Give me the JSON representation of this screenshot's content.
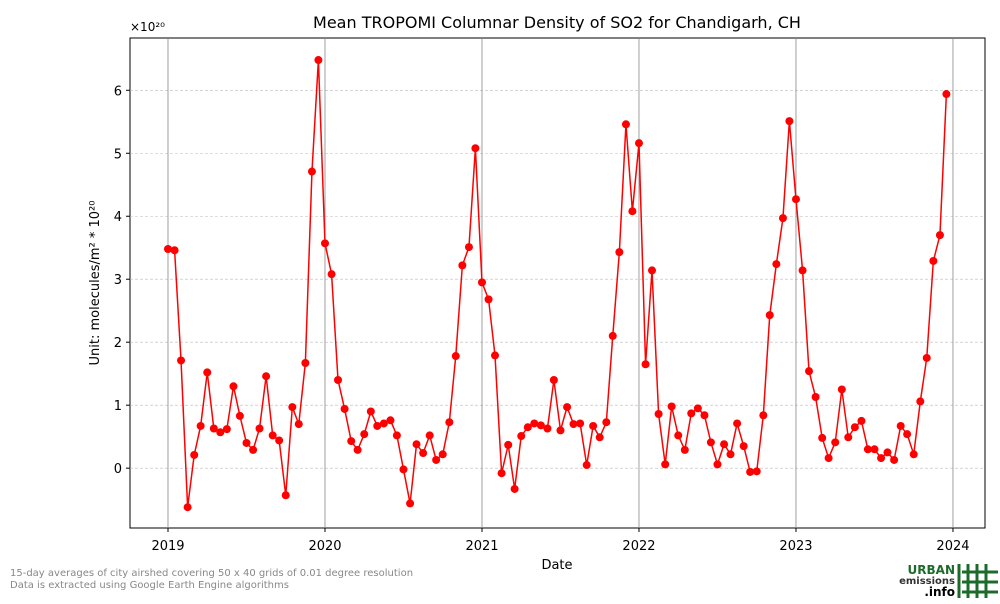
{
  "chart_data": {
    "type": "line",
    "title": "Mean TROPOMI Columnar Density of SO2 for Chandigarh, CH",
    "y_offset_label": "×10²⁰",
    "xlabel": "Date",
    "ylabel": "Unit: molecules/m² * 10²⁰",
    "footnotes": [
      "15-day averages of city airshed covering 50 x 40 grids of 0.01 degree resolution",
      "Data is extracted using Google Earth Engine algorithms"
    ],
    "logo": [
      "URBAN",
      "emissions",
      ".info"
    ],
    "grid": true,
    "xlim": [
      2018.758,
      2024.204
    ],
    "xticks": [
      2019,
      2020,
      2021,
      2022,
      2023,
      2024
    ],
    "ylim": [
      -0.95,
      6.83
    ],
    "yticks": [
      0,
      1,
      2,
      3,
      4,
      5,
      6
    ],
    "x": [
      2019.0,
      2019.042,
      2019.083,
      2019.125,
      2019.167,
      2019.208,
      2019.25,
      2019.292,
      2019.333,
      2019.375,
      2019.417,
      2019.458,
      2019.5,
      2019.542,
      2019.583,
      2019.625,
      2019.667,
      2019.708,
      2019.75,
      2019.792,
      2019.833,
      2019.875,
      2019.917,
      2019.958,
      2020.0,
      2020.042,
      2020.083,
      2020.125,
      2020.167,
      2020.208,
      2020.25,
      2020.292,
      2020.333,
      2020.375,
      2020.417,
      2020.458,
      2020.5,
      2020.542,
      2020.583,
      2020.625,
      2020.667,
      2020.708,
      2020.75,
      2020.792,
      2020.833,
      2020.875,
      2020.917,
      2020.958,
      2021.0,
      2021.042,
      2021.083,
      2021.125,
      2021.167,
      2021.208,
      2021.25,
      2021.292,
      2021.333,
      2021.375,
      2021.417,
      2021.458,
      2021.5,
      2021.542,
      2021.583,
      2021.625,
      2021.667,
      2021.708,
      2021.75,
      2021.792,
      2021.833,
      2021.875,
      2021.917,
      2021.958,
      2022.0,
      2022.042,
      2022.083,
      2022.125,
      2022.167,
      2022.208,
      2022.25,
      2022.292,
      2022.333,
      2022.375,
      2022.417,
      2022.458,
      2022.5,
      2022.542,
      2022.583,
      2022.625,
      2022.667,
      2022.708,
      2022.75,
      2022.792,
      2022.833,
      2022.875,
      2022.917,
      2022.958,
      2023.0,
      2023.042,
      2023.083,
      2023.125,
      2023.167,
      2023.208,
      2023.25,
      2023.292,
      2023.333,
      2023.375,
      2023.417,
      2023.458,
      2023.5,
      2023.542,
      2023.583,
      2023.625,
      2023.667,
      2023.708,
      2023.75,
      2023.792,
      2023.833,
      2023.875,
      2023.917,
      2023.958
    ],
    "series": [
      {
        "color": "#ff0000",
        "values": [
          3.48,
          3.46,
          1.71,
          -0.62,
          0.21,
          0.67,
          1.52,
          0.63,
          0.57,
          0.62,
          1.3,
          0.83,
          0.4,
          0.29,
          0.63,
          1.46,
          0.52,
          0.44,
          -0.43,
          0.97,
          0.7,
          1.67,
          4.71,
          6.48,
          3.57,
          3.08,
          1.4,
          0.94,
          0.43,
          0.29,
          0.54,
          0.9,
          0.67,
          0.71,
          0.76,
          0.52,
          -0.02,
          -0.56,
          0.38,
          0.24,
          0.52,
          0.13,
          0.22,
          0.73,
          1.78,
          3.22,
          3.51,
          5.08,
          2.95,
          2.68,
          1.79,
          -0.08,
          0.37,
          -0.33,
          0.51,
          0.65,
          0.71,
          0.68,
          0.63,
          1.4,
          0.6,
          0.97,
          0.7,
          0.71,
          0.05,
          0.67,
          0.49,
          0.73,
          2.1,
          3.43,
          5.46,
          4.08,
          5.16,
          1.65,
          3.14,
          0.86,
          0.06,
          0.98,
          0.52,
          0.29,
          0.87,
          0.95,
          0.84,
          0.41,
          0.06,
          0.38,
          0.22,
          0.71,
          0.35,
          -0.06,
          -0.05,
          0.84,
          2.43,
          3.24,
          3.97,
          5.51,
          4.27,
          3.14,
          1.54,
          1.13,
          0.48,
          0.16,
          0.41,
          1.25,
          0.49,
          0.65,
          0.75,
          0.3,
          0.3,
          0.16,
          0.25,
          0.13,
          0.67,
          0.54,
          0.22,
          1.06,
          1.75,
          3.29,
          3.7,
          5.94
        ]
      }
    ]
  }
}
